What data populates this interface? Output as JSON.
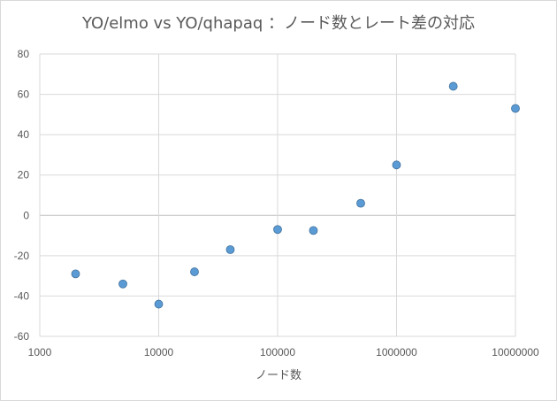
{
  "chart_data": {
    "type": "scatter",
    "title": "YO/elmo vs YO/qhapaq ：ノード数とレート差の対応",
    "xlabel": "ノード数",
    "ylabel": "",
    "x_scale": "log",
    "xlim": [
      1000,
      10000000
    ],
    "ylim": [
      -60,
      80
    ],
    "x_ticks": [
      "1000",
      "10000",
      "100000",
      "1000000",
      "10000000"
    ],
    "y_ticks": [
      "80",
      "60",
      "40",
      "20",
      "0",
      "-20",
      "-40",
      "-60"
    ],
    "grid": true,
    "legend": "none",
    "marker_color": "#5b9bd5",
    "points": [
      {
        "x": 2000,
        "y": -29
      },
      {
        "x": 5000,
        "y": -34
      },
      {
        "x": 10000,
        "y": -44
      },
      {
        "x": 20000,
        "y": -28
      },
      {
        "x": 40000,
        "y": -17
      },
      {
        "x": 100000,
        "y": -7
      },
      {
        "x": 200000,
        "y": -7.5
      },
      {
        "x": 500000,
        "y": 6
      },
      {
        "x": 1000000,
        "y": 25
      },
      {
        "x": 3000000,
        "y": 64
      },
      {
        "x": 10000000,
        "y": 53
      }
    ]
  }
}
